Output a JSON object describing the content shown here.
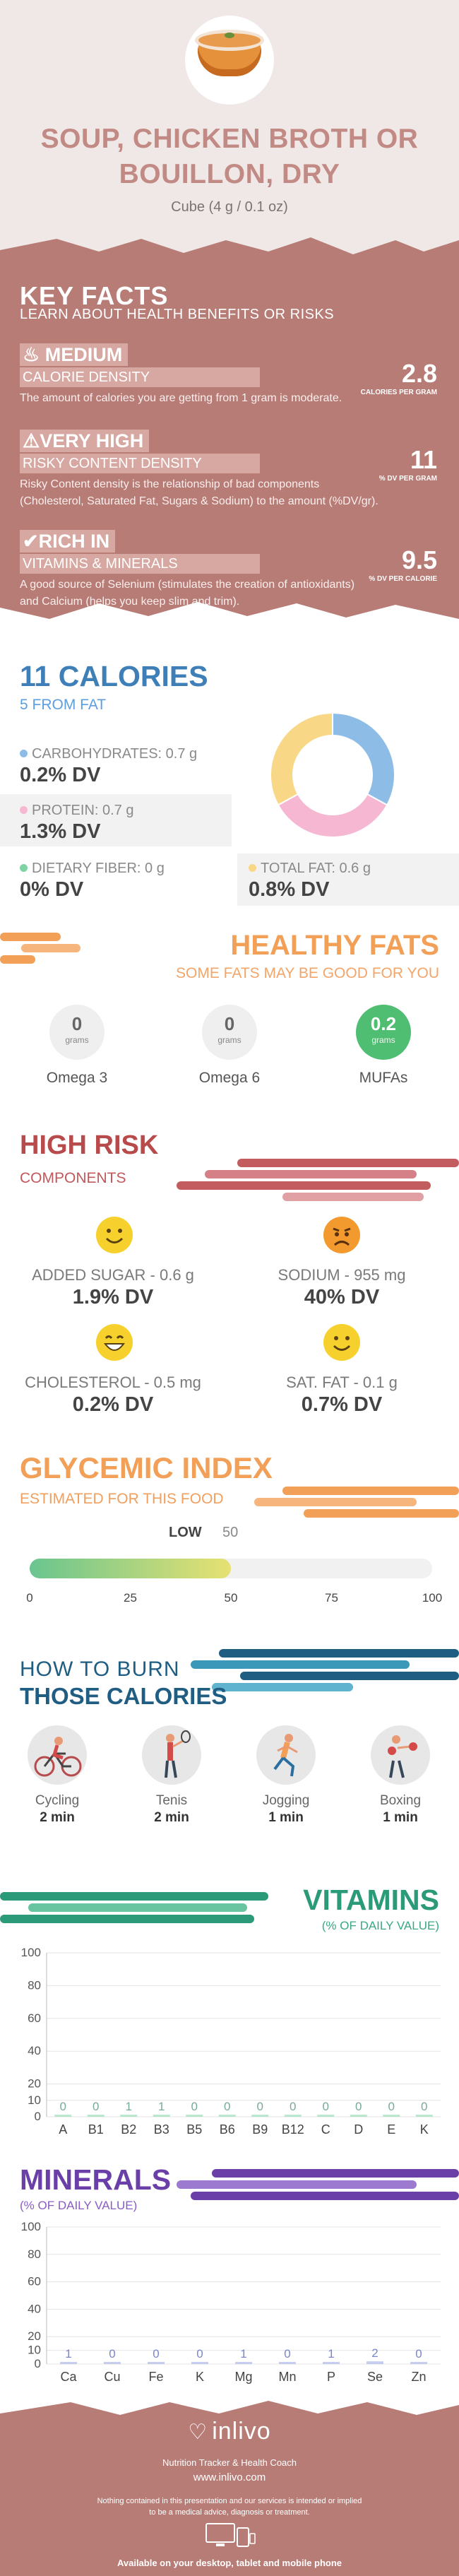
{
  "header": {
    "title_line1": "SOUP, CHICKEN BROTH OR",
    "title_line2": "BOUILLON, DRY",
    "serving": "Cube (4 g / 0.1 oz)",
    "image": "soup-bowl-icon"
  },
  "key_facts": {
    "title": "KEY FACTS",
    "subtitle": "LEARN ABOUT HEALTH BENEFITS OR RISKS",
    "facts": [
      {
        "icon": "flame-icon",
        "level": "MEDIUM",
        "label": "CALORIE DENSITY",
        "value": "2.8",
        "unit": "CALORIES PER GRAM",
        "description": "The amount of calories you are getting from 1 gram is moderate."
      },
      {
        "icon": "warning-icon",
        "level": "VERY HIGH",
        "label": "RISKY CONTENT DENSITY",
        "value": "11",
        "unit": "% DV PER GRAM",
        "description_line1": "Risky Content density is the relationship of bad components",
        "description_line2": "(Cholesterol, Saturated Fat, Sugars & Sodium) to the amount (%DV/gr)."
      },
      {
        "icon": "thumbs-up-icon",
        "level": "RICH  IN",
        "label": "VITAMINS & MINERALS",
        "value": "9.5",
        "unit": "% DV PER CALORIE",
        "description_line1": "A good source of Selenium (stimulates the creation of antioxidants)",
        "description_line2": "and Calcium (helps you keep slim and trim)."
      }
    ]
  },
  "calories": {
    "title": "11 CALORIES",
    "subtitle": "5 FROM FAT",
    "nutrients": [
      {
        "label": "CARBOHYDRATES: 0.7 g",
        "dv": "0.2% DV",
        "color": "#8dbde6"
      },
      {
        "label": "PROTEIN: 0.7 g",
        "dv": "1.3% DV",
        "color": "#f6b7d2"
      },
      {
        "label": "DIETARY FIBER: 0 g",
        "dv": "0% DV",
        "color": "#7ed3a1"
      },
      {
        "label": "TOTAL FAT: 0.6 g",
        "dv": "0.8% DV",
        "color": "#f8d887"
      }
    ]
  },
  "chart_data": [
    {
      "type": "pie",
      "categories": [
        "Carbohydrates",
        "Protein",
        "Total Fat"
      ],
      "values": [
        0.33,
        0.34,
        0.33
      ],
      "colors": [
        "#8dbde6",
        "#f6b7d2",
        "#f8d887"
      ]
    },
    {
      "type": "bar",
      "title": "VITAMINS",
      "subtitle": "(% OF DAILY VALUE)",
      "categories": [
        "A",
        "B1",
        "B2",
        "B3",
        "B5",
        "B6",
        "B9",
        "B12",
        "C",
        "D",
        "E",
        "K"
      ],
      "values": [
        0,
        0,
        1,
        1,
        0,
        0,
        0,
        0,
        0,
        0,
        0,
        0
      ],
      "ylim": [
        0,
        100
      ],
      "yticks": [
        0,
        10,
        20,
        40,
        60,
        80,
        100
      ],
      "grid": true,
      "color": "#7fd8a8"
    },
    {
      "type": "bar",
      "title": "MINERALS",
      "subtitle": "(% OF DAILY VALUE)",
      "categories": [
        "Ca",
        "Cu",
        "Fe",
        "K",
        "Mg",
        "Mn",
        "P",
        "Se",
        "Zn"
      ],
      "values": [
        1,
        0,
        0,
        0,
        1,
        0,
        1,
        2,
        0
      ],
      "ylim": [
        0,
        100
      ],
      "yticks": [
        0,
        10,
        20,
        40,
        60,
        80,
        100
      ],
      "grid": true,
      "color": "#9aa6e3"
    },
    {
      "type": "bar",
      "title": "GLYCEMIC INDEX",
      "subtitle": "ESTIMATED FOR THIS FOOD",
      "categories": [
        "LOW"
      ],
      "values": [
        50
      ],
      "xlim": [
        0,
        100
      ],
      "xticks": [
        0,
        25,
        50,
        75,
        100
      ]
    }
  ],
  "healthy_fats": {
    "title": "HEALTHY FATS",
    "subtitle": "SOME FATS MAY BE GOOD FOR YOU",
    "unit": "grams",
    "items": [
      {
        "name": "Omega 3",
        "value": "0"
      },
      {
        "name": "Omega 6",
        "value": "0"
      },
      {
        "name": "MUFAs",
        "value": "0.2"
      }
    ]
  },
  "high_risk": {
    "title": "HIGH RISK",
    "subtitle": "COMPONENTS",
    "items": [
      {
        "label": "ADDED SUGAR - 0.6 g",
        "dv": "1.9% DV",
        "face": "smile-face-icon"
      },
      {
        "label": "SODIUM - 955 mg",
        "dv": "40% DV",
        "face": "sad-face-icon"
      },
      {
        "label": "CHOLESTEROL - 0.5 mg",
        "dv": "0.2% DV",
        "face": "grin-face-icon"
      },
      {
        "label": "SAT. FAT - 0.1 g",
        "dv": "0.7% DV",
        "face": "smile-face-icon"
      }
    ]
  },
  "glycemic": {
    "title": "GLYCEMIC INDEX",
    "subtitle": "ESTIMATED FOR THIS FOOD",
    "level": "LOW",
    "value": "50",
    "ticks": [
      "0",
      "25",
      "50",
      "75",
      "100"
    ]
  },
  "burn": {
    "title_line1": "HOW TO BURN",
    "title_line2": "THOSE CALORIES",
    "activities": [
      {
        "name": "Cycling",
        "time": "2 min",
        "icon": "cyclist-icon"
      },
      {
        "name": "Tenis",
        "time": "2 min",
        "icon": "tennis-player-icon"
      },
      {
        "name": "Jogging",
        "time": "1 min",
        "icon": "runner-icon"
      },
      {
        "name": "Boxing",
        "time": "1 min",
        "icon": "boxer-icon"
      }
    ]
  },
  "footer": {
    "brand": "inlivo",
    "tagline": "Nutrition Tracker & Health Coach",
    "url": "www.inlivo.com",
    "disclaimer_line1": "Nothing contained in this presentation and our services is intended or implied",
    "disclaimer_line2": "to be a medical advice, diagnosis or treatment.",
    "availability": "Available on your desktop, tablet and mobile phone"
  },
  "colors": {
    "brand_rose": "#b77c76",
    "calories_blue": "#3f7fb8",
    "fats_orange": "#f29f57",
    "risk_red": "#b74a4a",
    "burn_teal": "#1f5d82",
    "vitamins_green": "#2b9a78",
    "minerals_purple": "#6b3fa8"
  }
}
